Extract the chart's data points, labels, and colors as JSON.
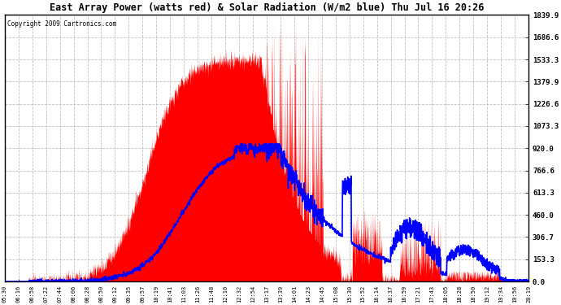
{
  "title": "East Array Power (watts red) & Solar Radiation (W/m2 blue) Thu Jul 16 20:26",
  "copyright": "Copyright 2009 Cartronics.com",
  "yticks": [
    0.0,
    153.3,
    306.7,
    460.0,
    613.3,
    766.6,
    920.0,
    1073.3,
    1226.6,
    1379.9,
    1533.3,
    1686.6,
    1839.9
  ],
  "ymax": 1839.9,
  "xtick_labels": [
    "05:30",
    "06:16",
    "06:58",
    "07:22",
    "07:44",
    "08:06",
    "08:28",
    "08:50",
    "09:12",
    "09:35",
    "09:57",
    "10:19",
    "10:41",
    "11:03",
    "11:26",
    "11:48",
    "12:10",
    "12:32",
    "12:54",
    "13:17",
    "13:39",
    "14:01",
    "14:23",
    "14:45",
    "15:08",
    "15:30",
    "15:52",
    "16:14",
    "16:37",
    "16:59",
    "17:21",
    "17:43",
    "18:05",
    "18:28",
    "18:50",
    "19:12",
    "19:34",
    "19:56",
    "20:19"
  ],
  "bg_color": "#ffffff",
  "plot_bg_color": "#ffffff",
  "grid_color": "#c0c0c0",
  "red_color": "#ff0000",
  "blue_color": "#0000ff"
}
